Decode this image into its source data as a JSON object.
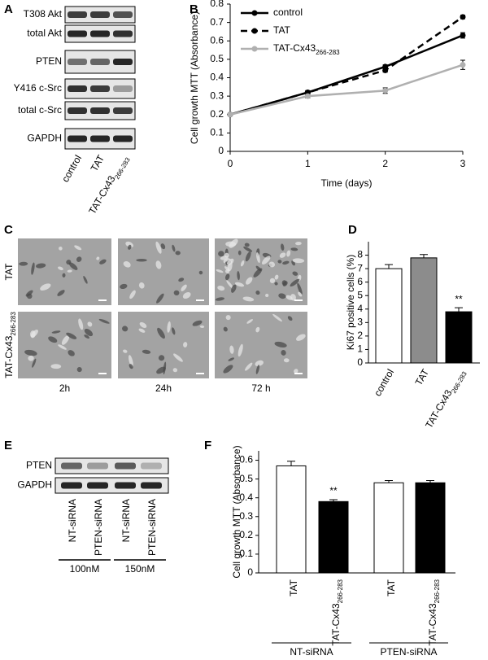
{
  "blot_a": {
    "panel_label": "A",
    "rows": [
      "T308 Akt",
      "total Akt",
      "PTEN",
      "Y416 c-Src",
      "total c-Src",
      "GAPDH"
    ],
    "lanes": [
      "control",
      "TAT",
      "TAT-Cx43"
    ],
    "lane_subscripts": {
      "2": "266-283"
    }
  },
  "chart_data": [
    {
      "type": "line",
      "panel_label": "B",
      "y_label": "Cell growth MTT (Absorbance)",
      "x_label": "Time (days)",
      "x": [
        0,
        1,
        2,
        3
      ],
      "xlim": [
        0,
        3
      ],
      "xticks": [
        0,
        1,
        2,
        3
      ],
      "ylim": [
        0,
        0.8
      ],
      "yticks": [
        0,
        0.1,
        0.2,
        0.3,
        0.4,
        0.5,
        0.6,
        0.7,
        0.8
      ],
      "legend": "upper left",
      "series": [
        {
          "name": "control",
          "color": "#000000",
          "dashed": false,
          "values": [
            0.2,
            0.32,
            0.46,
            0.63
          ],
          "errors": [
            0.005,
            0.01,
            0.01,
            0.015
          ]
        },
        {
          "name": "TAT",
          "color": "#000000",
          "dashed": true,
          "values": [
            0.2,
            0.32,
            0.44,
            0.73
          ],
          "errors": [
            0.005,
            0.01,
            0.01,
            0.01
          ]
        },
        {
          "name": "TAT-Cx43",
          "name_subscript": "266-283",
          "color": "#b0b0b0",
          "dashed": false,
          "values": [
            0.2,
            0.3,
            0.33,
            0.47
          ],
          "errors": [
            0.005,
            0.01,
            0.015,
            0.025
          ]
        }
      ]
    },
    {
      "type": "bar",
      "panel_label": "D",
      "y_label": "Ki67 positive cells (%)",
      "categories": [
        "control",
        "TAT",
        "TAT-Cx43"
      ],
      "subscripts": {
        "2": "266-283"
      },
      "values": [
        7.0,
        7.8,
        3.8
      ],
      "errors": [
        0.3,
        0.25,
        0.3
      ],
      "colors": [
        "#ffffff",
        "#8c8c8c",
        "#000000"
      ],
      "ylim": [
        0,
        9
      ],
      "yticks": [
        0,
        1,
        2,
        3,
        4,
        5,
        6,
        7,
        8
      ],
      "annotations": [
        {
          "text": "**",
          "category": 2
        }
      ]
    },
    {
      "type": "bar",
      "panel_label": "F",
      "y_label": "Cell growth MTT (Absorbance)",
      "categories": [
        "TAT",
        "TAT-Cx43",
        "TAT",
        "TAT-Cx43"
      ],
      "subscripts": {
        "1": "266-283",
        "3": "266-283"
      },
      "values": [
        0.57,
        0.38,
        0.48,
        0.48
      ],
      "errors": [
        0.025,
        0.01,
        0.012,
        0.012
      ],
      "colors": [
        "#ffffff",
        "#000000",
        "#ffffff",
        "#000000"
      ],
      "ylim": [
        0,
        0.65
      ],
      "yticks": [
        0,
        0.1,
        0.2,
        0.3,
        0.4,
        0.5,
        0.6
      ],
      "groups": [
        "NT-siRNA",
        "PTEN-siRNA"
      ],
      "annotations": [
        {
          "text": "**",
          "category": 1
        }
      ]
    }
  ],
  "micrographs_c": {
    "panel_label": "C",
    "rows": [
      "TAT",
      "TAT-Cx43"
    ],
    "row_subscripts": {
      "1": "266-283"
    },
    "columns": [
      "2h",
      "24h",
      "72 h"
    ]
  },
  "blot_e": {
    "panel_label": "E",
    "rows": [
      "PTEN",
      "GAPDH"
    ],
    "lanes": [
      "NT-siRNA",
      "PTEN-siRNA",
      "NT-siRNA",
      "PTEN-siRNA"
    ],
    "groups": [
      "100nM",
      "150nM"
    ]
  }
}
